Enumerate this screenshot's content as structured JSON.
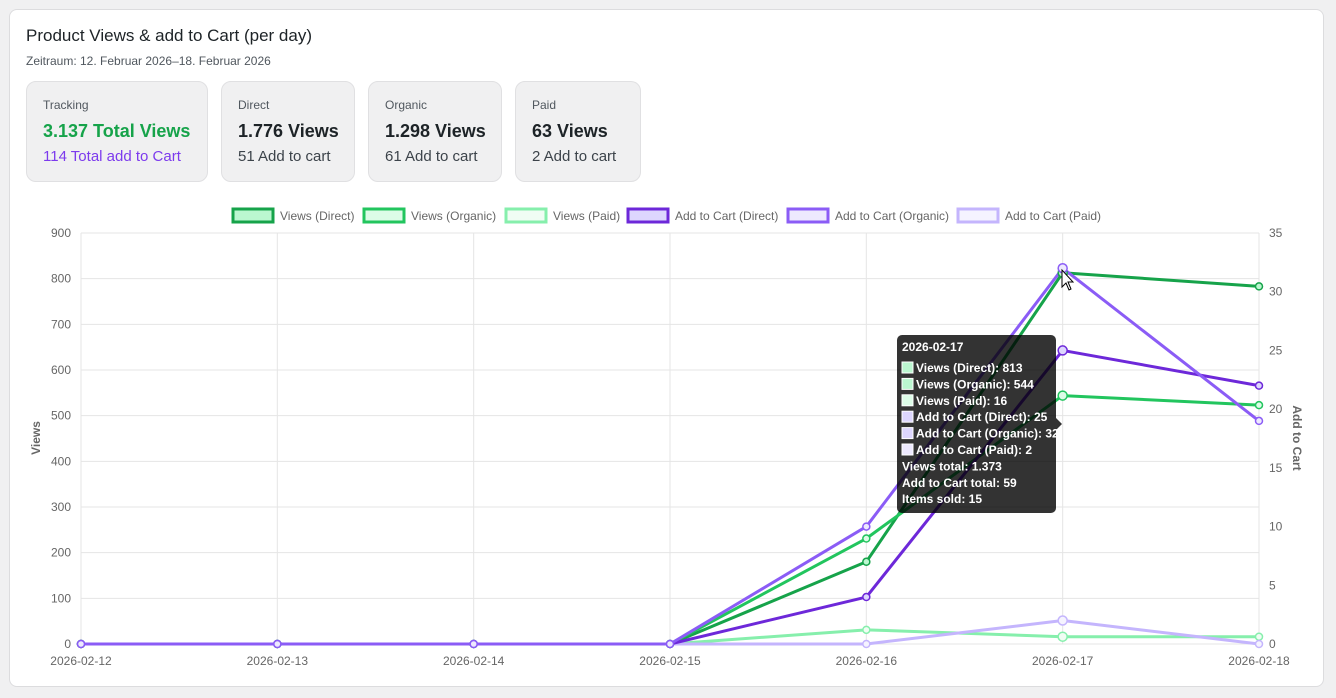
{
  "header": {
    "title": "Product Views & add to Cart (per day)",
    "period": "Zeitraum: 12. Februar 2026–18. Februar 2026"
  },
  "tiles": [
    {
      "label": "Tracking",
      "main": "3.137 Total Views",
      "sub": "114 Total add to Cart"
    },
    {
      "label": "Direct",
      "main": "1.776 Views",
      "sub": "51 Add to cart"
    },
    {
      "label": "Organic",
      "main": "1.298 Views",
      "sub": "61 Add to cart"
    },
    {
      "label": "Paid",
      "main": "63 Views",
      "sub": "2 Add to cart"
    }
  ],
  "colors": {
    "accent_green": "#16a34a",
    "accent_purple": "#7c3aed"
  },
  "chart_data": {
    "type": "line",
    "title": "",
    "x": [
      "2026-02-12",
      "2026-02-13",
      "2026-02-14",
      "2026-02-15",
      "2026-02-16",
      "2026-02-17",
      "2026-02-18"
    ],
    "ylabel": "Views",
    "y2label": "Add to Cart",
    "ylim": [
      0,
      900
    ],
    "y2lim": [
      0,
      35
    ],
    "yticks": [
      0,
      100,
      200,
      300,
      400,
      500,
      600,
      700,
      800,
      900
    ],
    "y2ticks": [
      0,
      5,
      10,
      15,
      20,
      25,
      30,
      35
    ],
    "grid": true,
    "legend_position": "top",
    "series": [
      {
        "name": "Views (Direct)",
        "axis": "left",
        "color": "#16a34a",
        "fill": "#bbf7d0",
        "values": [
          0,
          0,
          0,
          0,
          180,
          813,
          783
        ]
      },
      {
        "name": "Views (Organic)",
        "axis": "left",
        "color": "#22c55e",
        "fill": "#dcfce7",
        "values": [
          0,
          0,
          0,
          0,
          231,
          544,
          523
        ]
      },
      {
        "name": "Views (Paid)",
        "axis": "left",
        "color": "#86efac",
        "fill": "#f0fdf4",
        "values": [
          0,
          0,
          0,
          0,
          31,
          16,
          16
        ]
      },
      {
        "name": "Add to Cart (Direct)",
        "axis": "right",
        "color": "#6d28d9",
        "fill": "#ddd6fe",
        "values": [
          0,
          0,
          0,
          0,
          4,
          25,
          22
        ]
      },
      {
        "name": "Add to Cart (Organic)",
        "axis": "right",
        "color": "#8b5cf6",
        "fill": "#ede9fe",
        "values": [
          0,
          0,
          0,
          0,
          10,
          32,
          19
        ]
      },
      {
        "name": "Add to Cart (Paid)",
        "axis": "right",
        "color": "#c4b5fd",
        "fill": "#f5f3ff",
        "values": [
          0,
          0,
          0,
          0,
          0,
          2,
          0
        ]
      }
    ],
    "tooltip": {
      "title": "2026-02-17",
      "lines": [
        "Views (Direct): 813",
        "Views (Organic): 544",
        "Views (Paid): 16",
        "Add to Cart (Direct): 25",
        "Add to Cart (Organic): 32",
        "Add to Cart (Paid): 2",
        "Views total: 1.373",
        "Add to Cart total: 59",
        "Items sold: 15"
      ],
      "swatch_colors": [
        "#bbf7d0",
        "#bbf7d0",
        "#dcfce7",
        "#ddd6fe",
        "#ddd6fe",
        "#ede9fe"
      ]
    }
  }
}
